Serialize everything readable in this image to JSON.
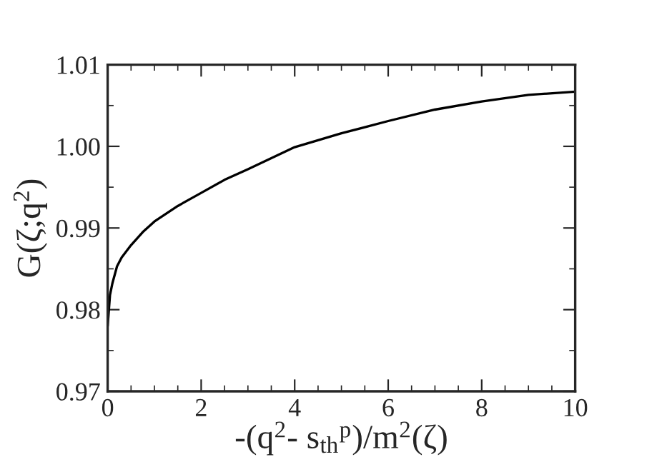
{
  "chart_data": {
    "type": "line",
    "xlabel": "-(q$^{2}$- s$_{th}$$^{p}$)/m$^{2}$(ζ)",
    "ylabel": "G(ζ;q$^{2}$)",
    "series": [
      {
        "color": "#000000",
        "x": [
          0,
          0.05,
          0.1,
          0.2,
          0.3,
          0.5,
          0.75,
          1,
          1.5,
          2,
          2.5,
          3,
          4,
          5,
          6,
          7,
          8,
          9,
          10
        ],
        "values": [
          0.978,
          0.9818,
          0.9832,
          0.9853,
          0.9864,
          0.9879,
          0.9895,
          0.9908,
          0.9927,
          0.9943,
          0.9959,
          0.9972,
          0.9999,
          1.0016,
          1.0031,
          1.0045,
          1.0055,
          1.0063,
          1.0067
        ]
      }
    ],
    "xlim": [
      0,
      10
    ],
    "xticks": [
      0,
      2,
      4,
      6,
      8,
      10
    ],
    "ylim": [
      0.97,
      1.01
    ],
    "yticks": [
      0.97,
      0.98,
      0.99,
      {
        "value": 1.0,
        "label": "1.00"
      },
      1.01
    ],
    "grid": false,
    "line_style": "solid",
    "marker": "none"
  }
}
